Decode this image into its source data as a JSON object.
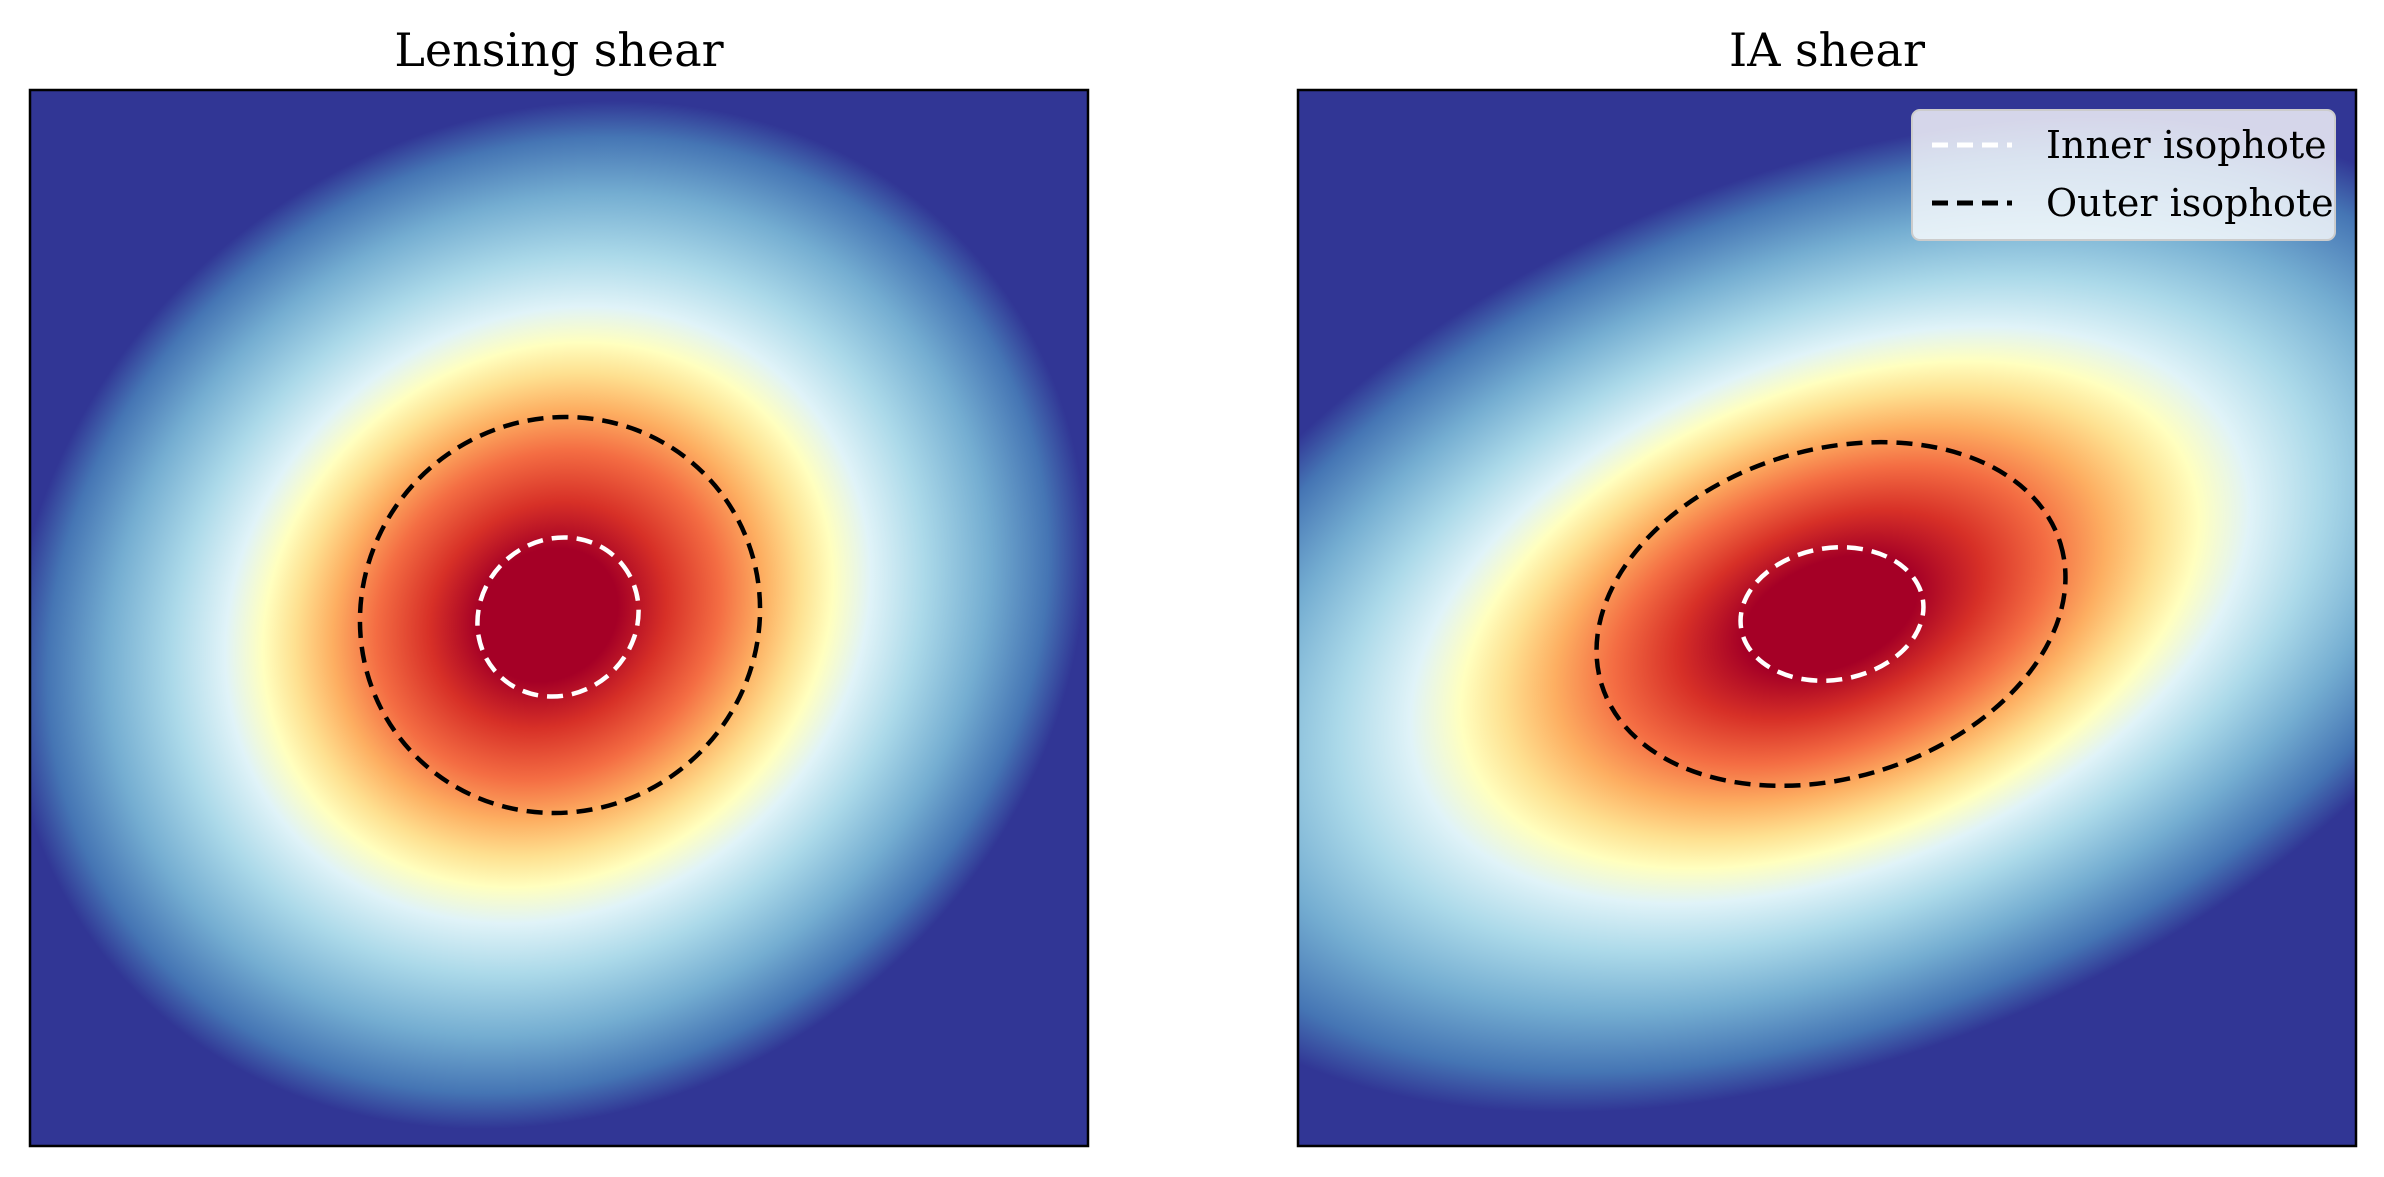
{
  "chart_data": [
    {
      "type": "heatmap",
      "title": "Lensing shear",
      "colormap": "RdYlBu_r",
      "axes_ticks": false,
      "grid": false,
      "series": [
        {
          "name": "Inner isophote",
          "color": "#ffffff",
          "linestyle": "dashed"
        },
        {
          "name": "Outer isophote",
          "color": "#000000",
          "linestyle": "dashed"
        }
      ]
    },
    {
      "type": "heatmap",
      "title": "IA shear",
      "colormap": "RdYlBu_r",
      "axes_ticks": false,
      "grid": false,
      "legend": {
        "placement": "top-right",
        "entries": [
          {
            "label": "Inner isophote",
            "color": "#ffffff",
            "linestyle": "dashed"
          },
          {
            "label": "Outer isophote",
            "color": "#000000",
            "linestyle": "dashed"
          }
        ]
      },
      "series": [
        {
          "name": "Inner isophote",
          "color": "#ffffff",
          "linestyle": "dashed"
        },
        {
          "name": "Outer isophote",
          "color": "#000000",
          "linestyle": "dashed"
        }
      ]
    }
  ]
}
